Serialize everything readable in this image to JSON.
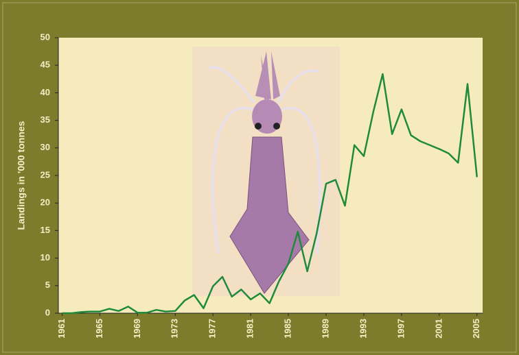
{
  "chart_data": {
    "type": "line",
    "ylabel": "Landings in '000 tonnes",
    "x": [
      1961,
      1962,
      1963,
      1964,
      1965,
      1966,
      1967,
      1968,
      1969,
      1970,
      1971,
      1972,
      1973,
      1974,
      1975,
      1976,
      1977,
      1978,
      1979,
      1980,
      1981,
      1982,
      1983,
      1984,
      1985,
      1986,
      1987,
      1988,
      1989,
      1990,
      1991,
      1992,
      1993,
      1994,
      1995,
      1996,
      1997,
      1998,
      1999,
      2000,
      2001,
      2002,
      2003,
      2004,
      2005
    ],
    "series": [
      {
        "color": "#1f8a3c",
        "values": [
          0,
          0,
          0.2,
          0.3,
          0.3,
          0.8,
          0.4,
          1.2,
          0.1,
          0.1,
          0.6,
          0.3,
          0.4,
          2.3,
          3.3,
          0.9,
          4.9,
          6.6,
          3.0,
          4.3,
          2.5,
          3.6,
          1.8,
          5.8,
          9.0,
          14.8,
          7.6,
          14.5,
          23.5,
          24.2,
          19.5,
          30.5,
          28.5,
          36.5,
          43.4,
          32.5,
          37.0,
          32.3,
          31.2,
          30.5,
          29.8,
          29.0,
          27.3,
          41.6,
          24.7
        ]
      }
    ],
    "xlim": [
      1960.6,
      2005.6
    ],
    "xticks": [
      1961,
      1965,
      1969,
      1973,
      1977,
      1981,
      1985,
      1989,
      1993,
      1997,
      2001,
      2005
    ],
    "ylim": [
      0,
      50
    ],
    "yticks": [
      0,
      5,
      10,
      15,
      20,
      25,
      30,
      35,
      40,
      45,
      50
    ]
  }
}
